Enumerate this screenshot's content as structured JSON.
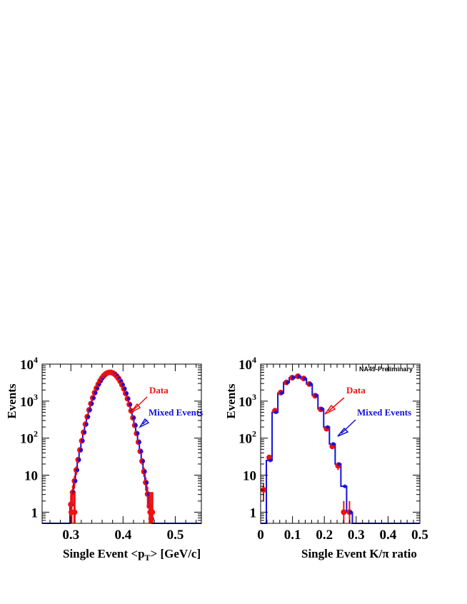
{
  "colors": {
    "data": "#ee1111",
    "mixed": "#1111dd",
    "frame": "#000000"
  },
  "chart_data": [
    {
      "type": "line",
      "ylabel": "Events",
      "xlabel_main": "Single Event <p",
      "xlabel_sub": "T",
      "xlabel_tail": "> [GeV/c]",
      "xlim": [
        0.245,
        0.55
      ],
      "ylim": [
        0.5,
        10000
      ],
      "yscale": "log",
      "xticks": [
        0.3,
        0.4,
        0.5
      ],
      "xtick_labels": [
        "0.3",
        "0.4",
        "0.5"
      ],
      "yticks": [
        1,
        10,
        100,
        1000,
        10000
      ],
      "ytick_base": [
        "1",
        "10",
        "10",
        "10",
        "10"
      ],
      "ytick_exp": [
        "",
        "",
        "2",
        "3",
        "4"
      ],
      "annotations": [
        {
          "text": "Data",
          "color": "#ee1111"
        },
        {
          "text": "Mixed Events",
          "color": "#1111dd"
        }
      ],
      "series": [
        {
          "name": "Data",
          "gaussian": {
            "amplitude": 6000,
            "mean": 0.375,
            "sigma": 0.0185
          },
          "range": [
            0.3,
            0.456
          ]
        },
        {
          "name": "Mixed Events",
          "gaussian": {
            "amplitude": 6000,
            "mean": 0.375,
            "sigma": 0.0185
          },
          "range": [
            0.3,
            0.456
          ]
        }
      ],
      "extra_data_points": [
        {
          "x": 0.301,
          "y": 1
        },
        {
          "x": 0.307,
          "y": 1
        },
        {
          "x": 0.452,
          "y": 1
        },
        {
          "x": 0.456,
          "y": 1
        }
      ]
    },
    {
      "type": "line",
      "ylabel": "Events",
      "xlabel": "Single Event K/π ratio",
      "corner_label": "NA49-Preliminary",
      "xlim": [
        0,
        0.5
      ],
      "ylim": [
        0.5,
        10000
      ],
      "yscale": "log",
      "xticks": [
        0,
        0.1,
        0.2,
        0.3,
        0.4,
        0.5
      ],
      "xtick_labels": [
        "0",
        "0.1",
        "0.2",
        "0.3",
        "0.4",
        "0.5"
      ],
      "yticks": [
        1,
        10,
        100,
        1000,
        10000
      ],
      "ytick_base": [
        "1",
        "10",
        "10",
        "10",
        "10"
      ],
      "ytick_exp": [
        "",
        "",
        "2",
        "3",
        "4"
      ],
      "annotations": [
        {
          "text": "Data",
          "color": "#ee1111"
        },
        {
          "text": "Mixed Events",
          "color": "#1111dd"
        }
      ],
      "series": [
        {
          "name": "Data",
          "x": [
            0.009,
            0.027,
            0.045,
            0.063,
            0.081,
            0.099,
            0.117,
            0.135,
            0.153,
            0.171,
            0.189,
            0.207,
            0.225,
            0.243,
            0.261,
            0.279
          ],
          "y": [
            4,
            30,
            550,
            1700,
            3200,
            4300,
            4700,
            4100,
            2900,
            1400,
            600,
            180,
            60,
            18,
            1,
            1
          ]
        },
        {
          "name": "Mixed Events",
          "x": [
            0.009,
            0.027,
            0.045,
            0.063,
            0.081,
            0.099,
            0.117,
            0.135,
            0.153,
            0.171,
            0.189,
            0.207,
            0.225,
            0.243,
            0.261,
            0.279
          ],
          "y": [
            0.5,
            25,
            500,
            1650,
            3200,
            4300,
            4650,
            4050,
            2900,
            1450,
            620,
            200,
            70,
            20,
            5,
            1
          ]
        }
      ]
    }
  ]
}
